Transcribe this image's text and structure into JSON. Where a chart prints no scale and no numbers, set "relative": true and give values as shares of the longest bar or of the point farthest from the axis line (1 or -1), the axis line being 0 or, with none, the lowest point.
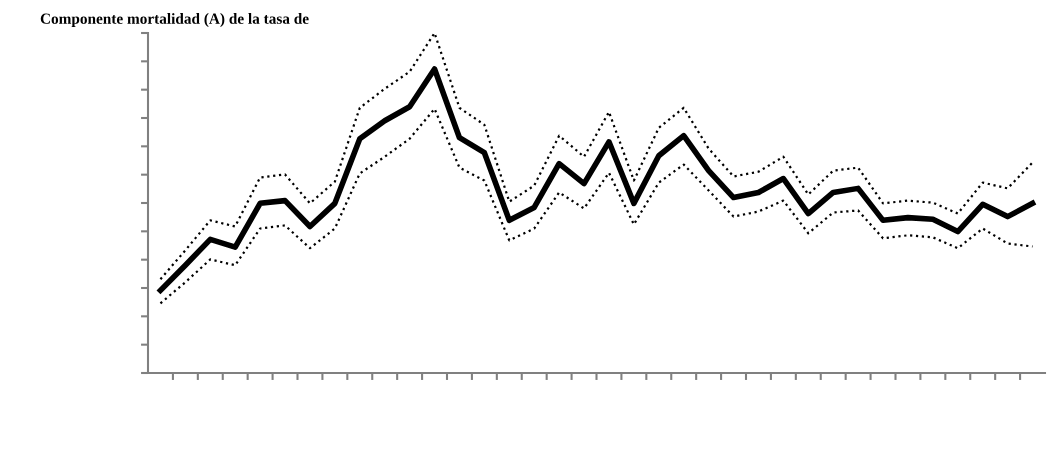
{
  "chart_data": {
    "type": "line",
    "title": "Componente mortalidad (A) de la tasa de",
    "relative": true,
    "grid": false,
    "marker": "none",
    "categories": [
      null,
      null,
      null,
      null,
      null,
      null,
      null,
      null,
      null,
      null,
      null,
      null,
      null,
      null,
      null,
      null,
      null,
      null,
      null,
      null,
      null,
      null,
      null,
      null,
      null,
      null,
      null,
      null,
      null,
      null,
      null,
      null,
      null,
      null,
      null,
      null
    ],
    "series": [
      {
        "color": "#000000",
        "line_style": "solid",
        "values": [
          0.243,
          0.317,
          0.393,
          0.37,
          0.499,
          0.507,
          0.431,
          0.499,
          0.689,
          0.742,
          0.783,
          0.894,
          0.692,
          0.648,
          0.449,
          0.487,
          0.616,
          0.557,
          0.68,
          0.499,
          0.639,
          0.698,
          0.595,
          0.516,
          0.531,
          0.572,
          0.469,
          0.531,
          0.543,
          0.449,
          0.457,
          0.452,
          0.416,
          0.496,
          0.46,
          0.499
        ]
      },
      {
        "color": "#000000",
        "line_style": "dotted",
        "values": [
          0.276,
          0.361,
          0.449,
          0.431,
          0.575,
          0.584,
          0.499,
          0.563,
          0.78,
          0.836,
          0.886,
          1.0,
          0.78,
          0.73,
          0.504,
          0.551,
          0.698,
          0.636,
          0.768,
          0.566,
          0.721,
          0.78,
          0.66,
          0.578,
          0.592,
          0.636,
          0.525,
          0.595,
          0.604,
          0.499,
          0.507,
          0.501,
          0.469,
          0.56,
          0.543,
          0.619
        ]
      },
      {
        "color": "#000000",
        "line_style": "dotted",
        "values": [
          0.205,
          0.267,
          0.334,
          0.317,
          0.425,
          0.434,
          0.367,
          0.425,
          0.587,
          0.636,
          0.689,
          0.777,
          0.604,
          0.566,
          0.39,
          0.425,
          0.531,
          0.484,
          0.589,
          0.437,
          0.56,
          0.613,
          0.537,
          0.46,
          0.475,
          0.507,
          0.411,
          0.472,
          0.478,
          0.396,
          0.405,
          0.399,
          0.367,
          0.425,
          0.381,
          0.372
        ]
      }
    ]
  }
}
